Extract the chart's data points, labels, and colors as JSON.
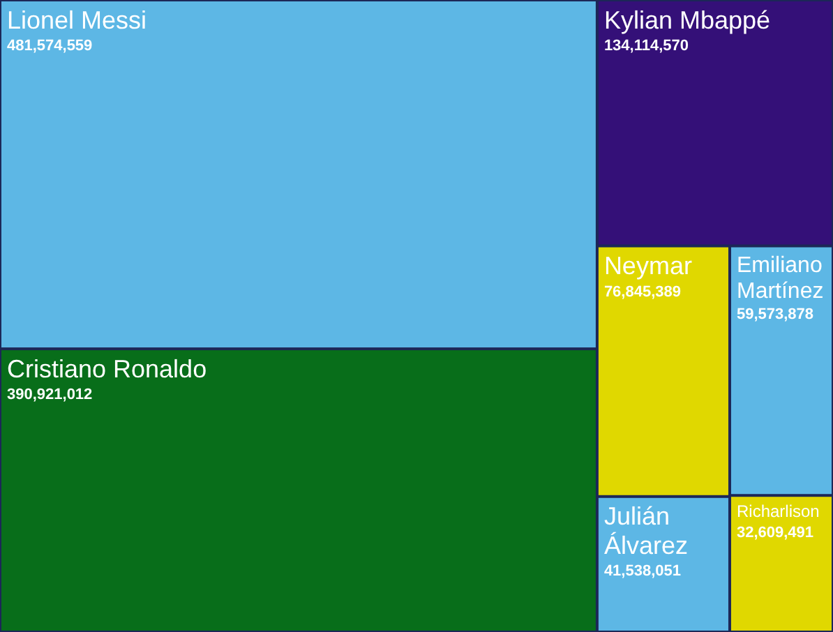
{
  "chart_data": {
    "type": "other",
    "categories": [
      "Lionel Messi",
      "Cristiano Ronaldo",
      "Kylian Mbappé",
      "Neymar",
      "Emiliano Martínez",
      "Julián Álvarez",
      "Richarlison"
    ],
    "values": [
      481574559,
      390921012,
      134114570,
      76845389,
      59573878,
      41538051,
      32609491
    ],
    "colors": [
      "#5db7e5",
      "#086e1a",
      "#341078",
      "#e0d800",
      "#5db7e5",
      "#5db7e5",
      "#e0d800"
    ],
    "value_labels": [
      "481,574,559",
      "390,921,012",
      "134,114,570",
      "76,845,389",
      "59,573,878",
      "41,538,051",
      "32,609,491"
    ]
  }
}
